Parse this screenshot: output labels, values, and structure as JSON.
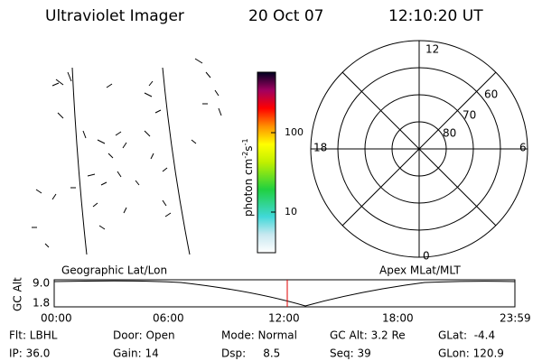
{
  "header": {
    "title": "Ultraviolet Imager",
    "date": "20 Oct 07",
    "time": "12:10:20 UT"
  },
  "colorbar": {
    "label": [
      "photon cm",
      "-2",
      "s",
      "-1"
    ],
    "ticks": [
      "100",
      "10"
    ]
  },
  "polar": {
    "mlt_labels": [
      "12",
      "18",
      "6",
      "0"
    ],
    "lat_labels": [
      "60",
      "70",
      "80"
    ]
  },
  "timeline": {
    "left_label": "Geographic Lat/Lon",
    "right_label": "Apex MLat/MLT",
    "y_label": "GC Alt",
    "yticks": [
      "9.0",
      "1.8"
    ],
    "xticks": [
      "00:00",
      "06:00",
      "12:00",
      "18:00",
      "23:59"
    ]
  },
  "info": {
    "rows": [
      [
        "Flt: LBHL",
        "Door: Open",
        "Mode: Normal",
        "GC Alt: 3.2 Re",
        "GLat:  -4.4"
      ],
      [
        "IP: 36.0",
        "Gain: 14",
        "Dsp:     8.5",
        "Seq: 39",
        "GLon: 120.9"
      ]
    ]
  }
}
